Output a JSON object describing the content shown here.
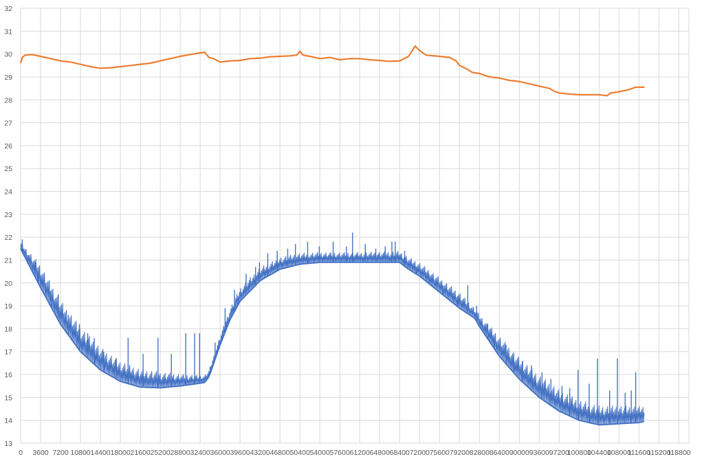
{
  "chart_data": {
    "type": "line",
    "title": "",
    "xlabel": "",
    "ylabel": "",
    "xlim": [
      0,
      120600
    ],
    "ylim": [
      13,
      32
    ],
    "grid": true,
    "legend": "none",
    "y_ticks": [
      13,
      14,
      15,
      16,
      17,
      18,
      19,
      20,
      21,
      22,
      23,
      24,
      25,
      26,
      27,
      28,
      29,
      30,
      31,
      32
    ],
    "x_ticks": [
      0,
      3600,
      7200,
      10800,
      14400,
      18000,
      21600,
      25200,
      28800,
      32400,
      36000,
      39600,
      43200,
      46800,
      50400,
      54000,
      57600,
      61200,
      64800,
      68400,
      72000,
      75600,
      79200,
      82800,
      86400,
      90000,
      93600,
      97200,
      100800,
      104400,
      108000,
      111600,
      115200,
      118800
    ],
    "series": [
      {
        "color": "#ed7d31",
        "points": [
          [
            0,
            29.6
          ],
          [
            300,
            29.85
          ],
          [
            800,
            29.95
          ],
          [
            2000,
            29.98
          ],
          [
            3600,
            29.9
          ],
          [
            5400,
            29.8
          ],
          [
            7200,
            29.7
          ],
          [
            9000,
            29.65
          ],
          [
            10800,
            29.55
          ],
          [
            12600,
            29.45
          ],
          [
            14400,
            29.38
          ],
          [
            16200,
            29.4
          ],
          [
            18000,
            29.45
          ],
          [
            19800,
            29.5
          ],
          [
            21600,
            29.55
          ],
          [
            23400,
            29.6
          ],
          [
            25200,
            29.7
          ],
          [
            27000,
            29.8
          ],
          [
            28800,
            29.9
          ],
          [
            30600,
            29.98
          ],
          [
            32400,
            30.05
          ],
          [
            33200,
            30.08
          ],
          [
            34000,
            29.85
          ],
          [
            35000,
            29.78
          ],
          [
            36000,
            29.65
          ],
          [
            37800,
            29.7
          ],
          [
            39600,
            29.72
          ],
          [
            41400,
            29.8
          ],
          [
            43200,
            29.82
          ],
          [
            45000,
            29.88
          ],
          [
            46800,
            29.9
          ],
          [
            48600,
            29.92
          ],
          [
            49800,
            29.95
          ],
          [
            50400,
            30.12
          ],
          [
            51000,
            29.95
          ],
          [
            52200,
            29.9
          ],
          [
            54000,
            29.8
          ],
          [
            55800,
            29.85
          ],
          [
            57600,
            29.75
          ],
          [
            59400,
            29.8
          ],
          [
            61200,
            29.8
          ],
          [
            63000,
            29.75
          ],
          [
            64800,
            29.72
          ],
          [
            66600,
            29.68
          ],
          [
            68400,
            29.7
          ],
          [
            70000,
            29.9
          ],
          [
            71200,
            30.35
          ],
          [
            72000,
            30.15
          ],
          [
            73200,
            29.95
          ],
          [
            75600,
            29.9
          ],
          [
            77400,
            29.85
          ],
          [
            78600,
            29.7
          ],
          [
            79200,
            29.5
          ],
          [
            80500,
            29.35
          ],
          [
            81500,
            29.2
          ],
          [
            82800,
            29.15
          ],
          [
            84600,
            29.0
          ],
          [
            86400,
            28.95
          ],
          [
            88200,
            28.85
          ],
          [
            90000,
            28.8
          ],
          [
            91800,
            28.7
          ],
          [
            93600,
            28.6
          ],
          [
            95400,
            28.5
          ],
          [
            96500,
            28.35
          ],
          [
            97200,
            28.3
          ],
          [
            99000,
            28.25
          ],
          [
            100800,
            28.22
          ],
          [
            102600,
            28.22
          ],
          [
            104400,
            28.22
          ],
          [
            105800,
            28.18
          ],
          [
            106500,
            28.3
          ],
          [
            108000,
            28.35
          ],
          [
            109800,
            28.45
          ],
          [
            111000,
            28.55
          ],
          [
            112600,
            28.55
          ]
        ]
      },
      {
        "color": "#4472c4",
        "base": [
          [
            0,
            21.5
          ],
          [
            3600,
            19.8
          ],
          [
            7200,
            18.2
          ],
          [
            10800,
            17.0
          ],
          [
            14400,
            16.2
          ],
          [
            18000,
            15.7
          ],
          [
            21600,
            15.45
          ],
          [
            25200,
            15.42
          ],
          [
            28800,
            15.5
          ],
          [
            32400,
            15.62
          ],
          [
            33200,
            15.65
          ],
          [
            34000,
            15.9
          ],
          [
            35000,
            16.6
          ],
          [
            36000,
            17.3
          ],
          [
            37800,
            18.4
          ],
          [
            39600,
            19.2
          ],
          [
            43200,
            20.1
          ],
          [
            46800,
            20.6
          ],
          [
            50400,
            20.82
          ],
          [
            54000,
            20.9
          ],
          [
            57600,
            20.9
          ],
          [
            61200,
            20.9
          ],
          [
            64800,
            20.9
          ],
          [
            68400,
            20.9
          ],
          [
            70000,
            20.6
          ],
          [
            72000,
            20.3
          ],
          [
            75600,
            19.6
          ],
          [
            79200,
            18.9
          ],
          [
            82000,
            18.45
          ],
          [
            82800,
            18.1
          ],
          [
            86400,
            16.8
          ],
          [
            90000,
            15.8
          ],
          [
            93600,
            15.0
          ],
          [
            97200,
            14.4
          ],
          [
            100800,
            14.0
          ],
          [
            104400,
            13.8
          ],
          [
            108000,
            13.85
          ],
          [
            111600,
            13.9
          ],
          [
            112600,
            13.95
          ]
        ],
        "band": [
          [
            0,
            0.3
          ],
          [
            3600,
            1.0
          ],
          [
            10800,
            1.1
          ],
          [
            18000,
            0.9
          ],
          [
            25200,
            0.7
          ],
          [
            32400,
            0.35
          ],
          [
            34000,
            0.3
          ],
          [
            39600,
            0.6
          ],
          [
            46800,
            0.55
          ],
          [
            54000,
            0.45
          ],
          [
            61200,
            0.45
          ],
          [
            68400,
            0.5
          ],
          [
            72000,
            0.6
          ],
          [
            79200,
            0.7
          ],
          [
            82000,
            0.45
          ],
          [
            86400,
            0.9
          ],
          [
            93600,
            1.0
          ],
          [
            100800,
            0.9
          ],
          [
            108000,
            0.8
          ],
          [
            112600,
            0.7
          ]
        ],
        "spikes": [
          [
            300,
            21.9
          ],
          [
            1500,
            20.8
          ],
          [
            2600,
            20.9
          ],
          [
            3200,
            20.3
          ],
          [
            4300,
            19.5
          ],
          [
            5600,
            19.1
          ],
          [
            6800,
            19.5
          ],
          [
            8600,
            18.6
          ],
          [
            10600,
            18.2
          ],
          [
            12100,
            17.8
          ],
          [
            13300,
            17.6
          ],
          [
            15000,
            17.0
          ],
          [
            17200,
            16.7
          ],
          [
            19400,
            17.6
          ],
          [
            22100,
            16.9
          ],
          [
            24800,
            17.6
          ],
          [
            27200,
            16.9
          ],
          [
            29800,
            17.8
          ],
          [
            31400,
            17.8
          ],
          [
            32300,
            17.8
          ],
          [
            35100,
            17.4
          ],
          [
            36900,
            18.9
          ],
          [
            38600,
            19.7
          ],
          [
            40700,
            20.4
          ],
          [
            42400,
            20.7
          ],
          [
            43100,
            20.9
          ],
          [
            44600,
            21.3
          ],
          [
            46300,
            21.4
          ],
          [
            48200,
            21.5
          ],
          [
            49600,
            21.7
          ],
          [
            51800,
            21.8
          ],
          [
            53900,
            21.6
          ],
          [
            56400,
            21.8
          ],
          [
            58800,
            21.6
          ],
          [
            59900,
            22.2
          ],
          [
            62200,
            21.7
          ],
          [
            64100,
            21.5
          ],
          [
            65800,
            21.6
          ],
          [
            67000,
            21.8
          ],
          [
            67600,
            21.8
          ],
          [
            69300,
            21.4
          ],
          [
            71400,
            20.7
          ],
          [
            73700,
            20.4
          ],
          [
            76200,
            19.9
          ],
          [
            78900,
            19.4
          ],
          [
            80700,
            19.9
          ],
          [
            82300,
            19.0
          ],
          [
            84300,
            18.2
          ],
          [
            85400,
            17.6
          ],
          [
            87600,
            17.3
          ],
          [
            89000,
            16.9
          ],
          [
            90600,
            16.6
          ],
          [
            92200,
            16.4
          ],
          [
            94100,
            16.1
          ],
          [
            95700,
            15.8
          ],
          [
            97700,
            15.5
          ],
          [
            99100,
            15.4
          ],
          [
            100600,
            16.2
          ],
          [
            102600,
            15.6
          ],
          [
            104100,
            16.7
          ],
          [
            106300,
            15.3
          ],
          [
            107700,
            16.7
          ],
          [
            109100,
            15.2
          ],
          [
            110200,
            15.3
          ],
          [
            111000,
            16.1
          ]
        ]
      }
    ]
  }
}
